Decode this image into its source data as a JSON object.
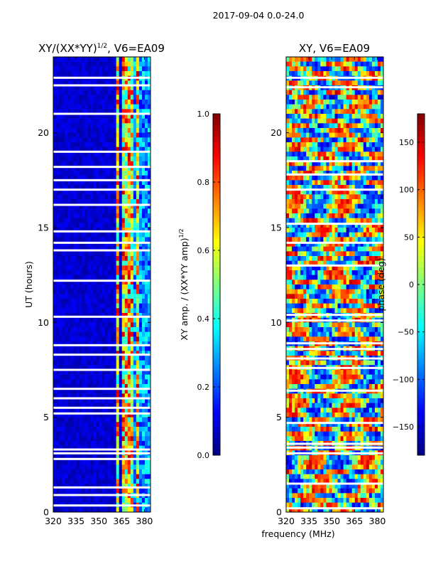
{
  "figure": {
    "suptitle": "2017-09-04 0.0-24.0"
  },
  "colors": {
    "jet": [
      "#00007f",
      "#0000ff",
      "#007fff",
      "#00ffff",
      "#7fff7f",
      "#ffff00",
      "#ff7f00",
      "#ff0000",
      "#7f0000"
    ],
    "gap": "#ffffff",
    "axis": "#000000"
  },
  "chart_data": [
    {
      "type": "heatmap",
      "title_main": "XY/(XX*YY)",
      "title_exp": "1/2",
      "title_suffix": ", V6=EA09",
      "xlabel": "",
      "ylabel": "UT (hours)",
      "xlim": [
        320,
        384
      ],
      "ylim": [
        0,
        24
      ],
      "xticks": [
        320,
        335,
        350,
        365,
        380
      ],
      "yticks": [
        0,
        5,
        10,
        15,
        20
      ],
      "colorbar": {
        "label_main": "XY amp. / (XX*YY amp)",
        "label_exp": "1/2",
        "range": [
          0.0,
          1.0
        ],
        "ticks": [
          "0.0",
          "0.2",
          "0.4",
          "0.6",
          "0.8",
          "1.0"
        ],
        "tick_values": [
          0.0,
          0.2,
          0.4,
          0.6,
          0.8,
          1.0
        ]
      },
      "bright_bands_mhz": [
        [
          361,
          364
        ],
        [
          366,
          367
        ],
        [
          368,
          372
        ],
        [
          374,
          376
        ]
      ],
      "gap_hours": [
        0.35,
        0.9,
        1.3,
        2.8,
        3.1,
        3.3,
        5.2,
        5.5,
        6.0,
        6.5,
        7.5,
        8.3,
        8.8,
        10.3,
        12.2,
        13.8,
        14.2,
        14.8,
        16.2,
        17.0,
        17.5,
        18.2,
        19.0,
        21.0,
        22.5,
        22.9
      ]
    },
    {
      "type": "heatmap",
      "title": "XY, V6=EA09",
      "xlabel": "frequency (MHz)",
      "ylabel": "",
      "xlim": [
        320,
        384
      ],
      "ylim": [
        0,
        24
      ],
      "xticks": [
        320,
        335,
        350,
        365,
        380
      ],
      "yticks": [
        0,
        5,
        10,
        15,
        20
      ],
      "colorbar": {
        "label": "phase (deg)",
        "range": [
          -180,
          180
        ],
        "ticks": [
          "−150",
          "−100",
          "−50",
          "0",
          "50",
          "100",
          "150"
        ],
        "tick_values": [
          -150,
          -100,
          -50,
          0,
          50,
          100,
          150
        ]
      },
      "gap_hours": [
        0.2,
        1.5,
        3.1,
        3.4,
        3.6,
        4.7,
        6.4,
        7.6,
        8.1,
        8.6,
        8.9,
        10.1,
        10.4,
        13.0,
        14.2,
        15.2,
        17.0,
        17.8,
        18.5,
        22.4,
        22.9
      ]
    }
  ]
}
